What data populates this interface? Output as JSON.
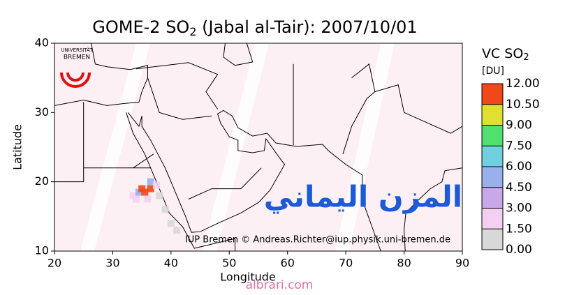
{
  "chart_data": {
    "type": "map",
    "title_parts": [
      "GOME-2 SO",
      "2",
      " (Jabal al-Tair): 2007/10/01"
    ],
    "x_label": "Longitude",
    "y_label": "Latitude",
    "xlim": [
      20,
      90
    ],
    "xticks": [
      20,
      30,
      40,
      50,
      60,
      70,
      80,
      90
    ],
    "ylim": [
      10,
      40
    ],
    "yticks": [
      10,
      20,
      30,
      40
    ],
    "colorbar": {
      "title_parts": [
        "VC SO",
        "2"
      ],
      "unit": "[DU]",
      "ticks": [
        {
          "value": 0,
          "label": "0.00"
        },
        {
          "value": 1.5,
          "label": "1.50"
        },
        {
          "value": 3,
          "label": "3.00"
        },
        {
          "value": 4.5,
          "label": "4.50"
        },
        {
          "value": 6,
          "label": "6.00"
        },
        {
          "value": 7.5,
          "label": "7.50"
        },
        {
          "value": 9,
          "label": "9.00"
        },
        {
          "value": 10.5,
          "label": "10.50"
        },
        {
          "value": 12,
          "label": "12.00"
        }
      ],
      "colors": [
        "#d8d8d8",
        "#f4d0f0",
        "#c8a8e8",
        "#9ab0ec",
        "#70d0e0",
        "#50e070",
        "#e0e030",
        "#f04818"
      ]
    },
    "plume": {
      "lon": [
        33.5,
        34.5,
        35.0,
        35.5,
        36.5,
        36.5,
        37.5,
        36.0,
        34.0,
        38.0,
        39.0,
        40.0,
        41.0
      ],
      "lat": [
        18.0,
        18.5,
        19.0,
        18.5,
        19.0,
        20.0,
        19.5,
        17.5,
        17.5,
        18.0,
        16.0,
        14.0,
        13.0
      ],
      "values": [
        2,
        6,
        11,
        12,
        11,
        5,
        3,
        3,
        3,
        1.5,
        1,
        1.5,
        1
      ]
    },
    "credit": "IUP Bremen © Andreas.Richter@iup.physik.uni-bremen.de",
    "logo_text": [
      "UNIVERSITÄT",
      "BREMEN"
    ],
    "watermark_arabic": "المزن اليماني",
    "watermark_site": "albrari.com"
  }
}
